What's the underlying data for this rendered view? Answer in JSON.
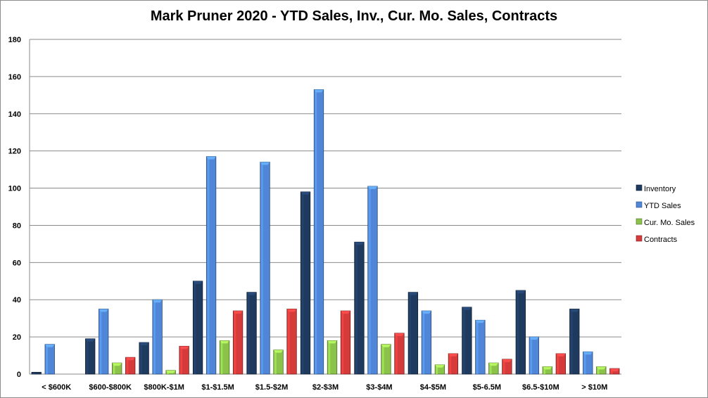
{
  "chart_data": {
    "type": "bar",
    "title": "Mark Pruner 2020 - YTD Sales, Inv., Cur. Mo. Sales, Contracts",
    "xlabel": "",
    "ylabel": "",
    "ylim": [
      0,
      180
    ],
    "yticks": [
      0,
      20,
      40,
      60,
      80,
      100,
      120,
      140,
      160,
      180
    ],
    "grid": true,
    "legend_position": "right",
    "categories": [
      "< $600K",
      "$600-$800K",
      "$800K-$1M",
      "$1-$1.5M",
      "$1.5-$2M",
      "$2-$3M",
      "$3-$4M",
      "$4-$5M",
      "$5-6.5M",
      "$6.5-$10M",
      "> $10M"
    ],
    "series": [
      {
        "name": "Inventory",
        "color": "#1f3a5f",
        "values": [
          1,
          19,
          17,
          50,
          44,
          98,
          71,
          44,
          36,
          45,
          35
        ]
      },
      {
        "name": "YTD Sales",
        "color": "#4f86d8",
        "values": [
          16,
          35,
          40,
          117,
          114,
          153,
          101,
          34,
          29,
          20,
          12
        ]
      },
      {
        "name": "Cur. Mo. Sales",
        "color": "#8bc34a",
        "values": [
          0,
          6,
          2,
          18,
          13,
          18,
          16,
          5,
          6,
          4,
          4
        ]
      },
      {
        "name": "Contracts",
        "color": "#d63b3b",
        "values": [
          0,
          9,
          15,
          34,
          35,
          34,
          22,
          11,
          8,
          11,
          3
        ]
      }
    ]
  }
}
